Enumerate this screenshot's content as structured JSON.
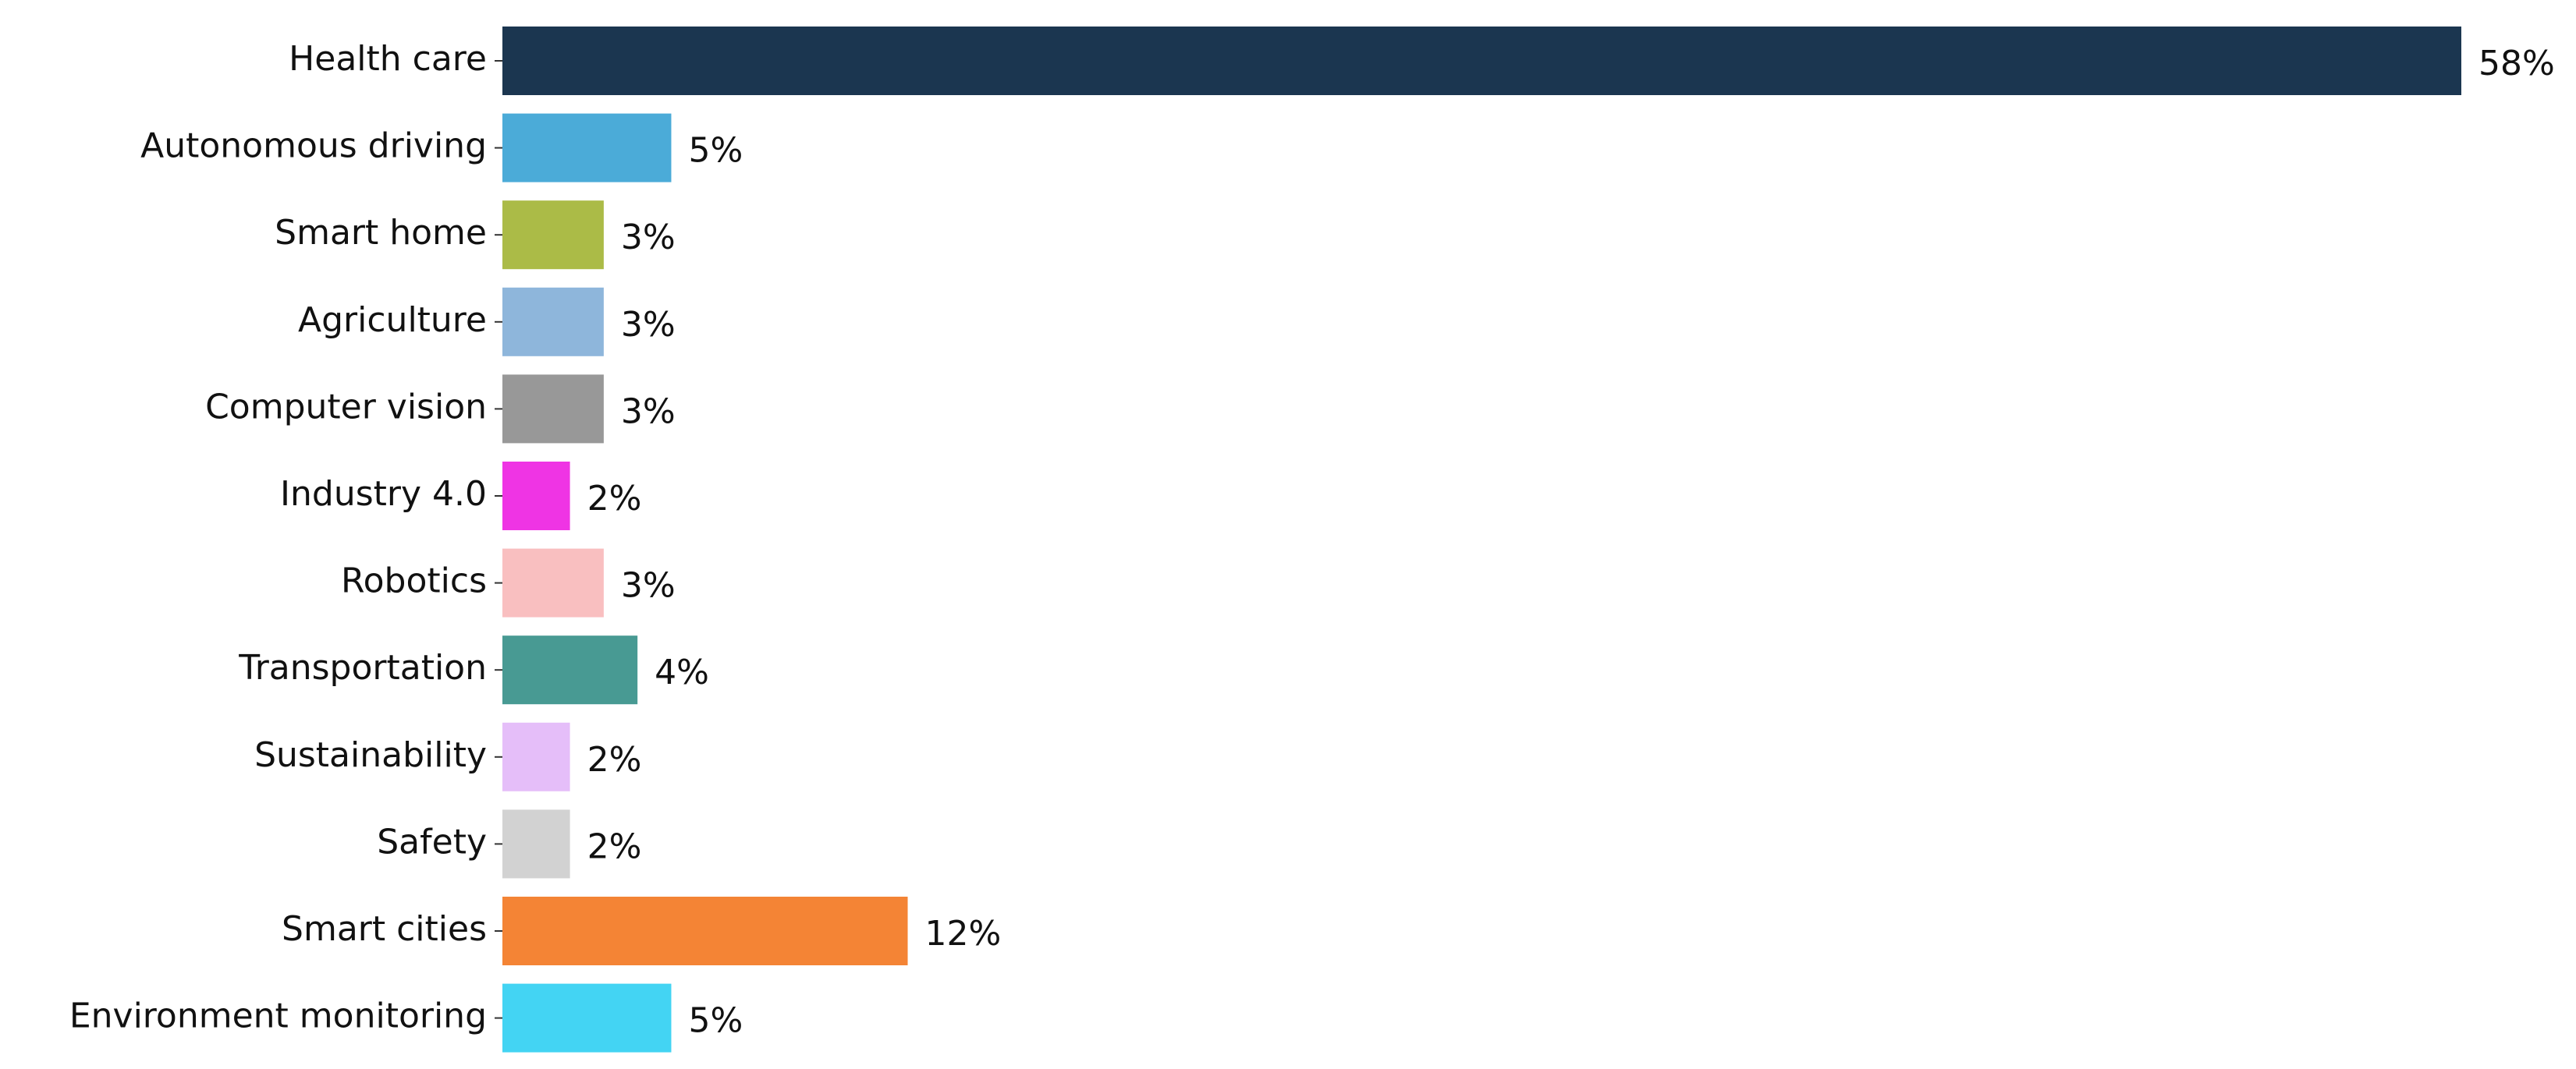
{
  "chart_data": {
    "type": "barh",
    "categories": [
      "Health care",
      "Autonomous driving",
      "Smart home",
      "Agriculture",
      "Computer vision",
      "Industry 4.0",
      "Robotics",
      "Transportation",
      "Sustainability",
      "Safety",
      "Smart cities",
      "Environment monitoring"
    ],
    "values": [
      58,
      5,
      3,
      3,
      3,
      2,
      3,
      4,
      2,
      2,
      12,
      5
    ],
    "value_labels": [
      "58%",
      "5%",
      "3%",
      "3%",
      "3%",
      "2%",
      "3%",
      "4%",
      "2%",
      "2%",
      "12%",
      "5%"
    ],
    "colors": [
      "#1b3650",
      "#4babd8",
      "#abbb47",
      "#8eb6db",
      "#989898",
      "#ef34e4",
      "#f9bfc0",
      "#489a93",
      "#e5bef9",
      "#d2d2d2",
      "#f48435",
      "#43d4f3"
    ]
  }
}
